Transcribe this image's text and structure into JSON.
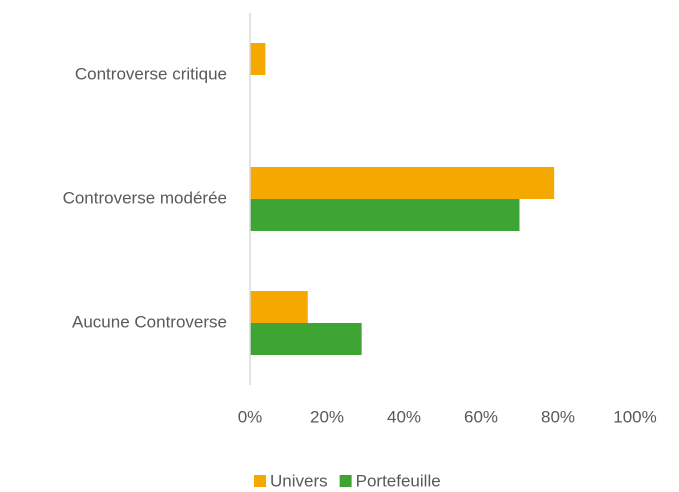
{
  "chart_data": {
    "type": "hbar",
    "categories": [
      "Controverse critique",
      "Controverse modérée",
      "Aucune Controverse"
    ],
    "series": [
      {
        "name": "Univers",
        "color": "#f5a800",
        "values": [
          4,
          79,
          15
        ]
      },
      {
        "name": "Portefeuille",
        "color": "#3ea535",
        "values": [
          0,
          70,
          29
        ]
      }
    ],
    "xlim": [
      0,
      100
    ],
    "xticks": [
      {
        "value": 0,
        "label": "0%"
      },
      {
        "value": 20,
        "label": "20%"
      },
      {
        "value": 40,
        "label": "40%"
      },
      {
        "value": 60,
        "label": "60%"
      },
      {
        "value": 80,
        "label": "80%"
      },
      {
        "value": 100,
        "label": "100%"
      }
    ],
    "legend": "bottom"
  }
}
